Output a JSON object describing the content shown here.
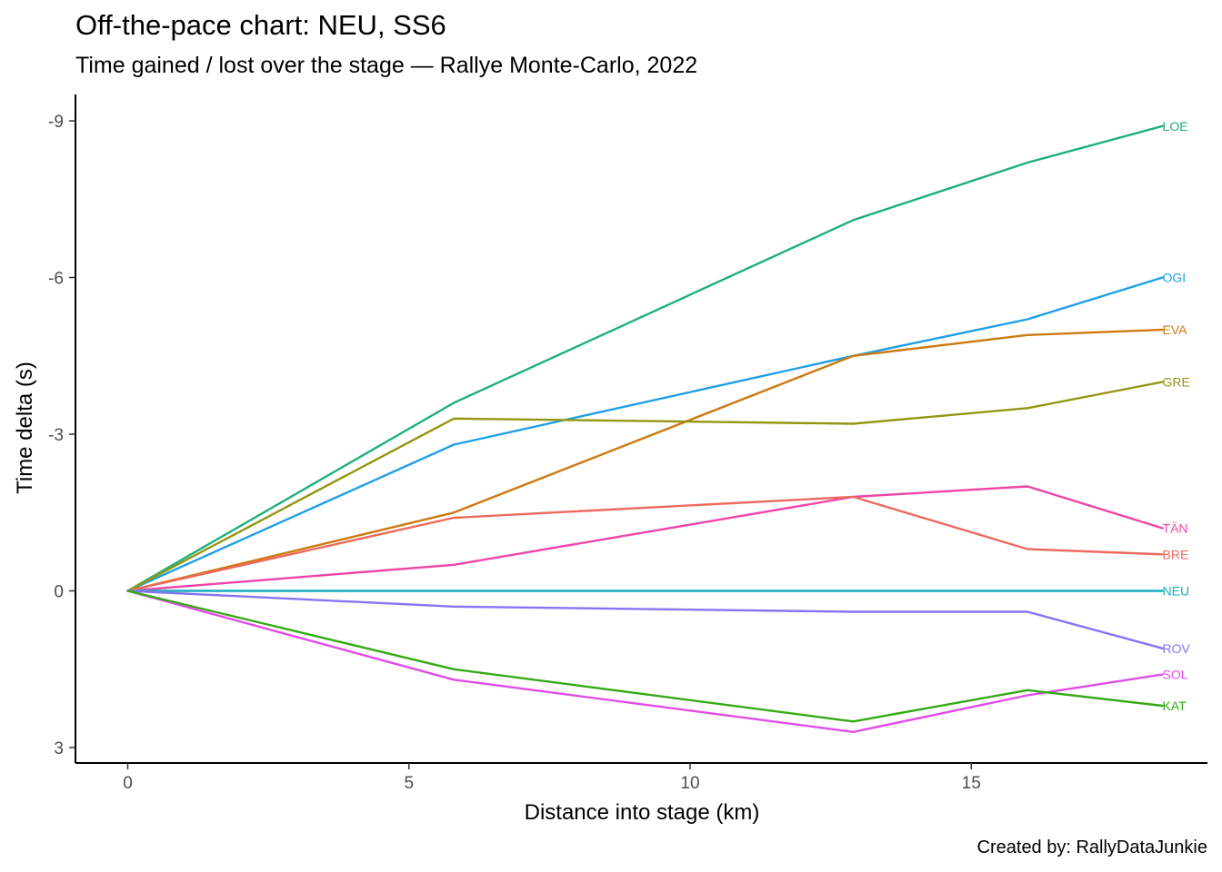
{
  "chart_data": {
    "type": "line",
    "title": "Off-the-pace chart: NEU, SS6",
    "subtitle": "Time gained / lost over the stage — Rallye Monte-Carlo, 2022",
    "caption": "Created by: RallyDataJunkie",
    "xlabel": "Distance into stage (km)",
    "ylabel": "Time delta (s)",
    "xlim": [
      -1.0,
      19.1
    ],
    "ylim": [
      -9.5,
      3.3
    ],
    "y_reversed": true,
    "x_ticks": [
      0,
      5,
      10,
      15
    ],
    "y_ticks": [
      -9,
      -6,
      -3,
      0,
      3
    ],
    "grid": false,
    "legend": "none (direct labels at line ends)",
    "x": [
      0,
      5.8,
      12.9,
      16.0,
      18.4
    ],
    "series": [
      {
        "name": "LOE",
        "color": "#1fb07a",
        "values": [
          0,
          -3.6,
          -7.1,
          -8.2,
          -8.9
        ]
      },
      {
        "name": "OGI",
        "color": "#1ea0e6",
        "values": [
          0,
          -2.8,
          -4.5,
          -5.2,
          -6.0
        ]
      },
      {
        "name": "EVA",
        "color": "#cc7a12",
        "values": [
          0,
          -1.5,
          -4.5,
          -4.9,
          -5.0
        ]
      },
      {
        "name": "GRE",
        "color": "#939612",
        "values": [
          0,
          -3.3,
          -3.2,
          -3.5,
          -4.0
        ]
      },
      {
        "name": "TÄN",
        "color": "#f045a8",
        "values": [
          0,
          -0.5,
          -1.8,
          -2.0,
          -1.2
        ]
      },
      {
        "name": "BRE",
        "color": "#ec6a5e",
        "values": [
          0,
          -1.4,
          -1.8,
          -0.8,
          -0.7
        ]
      },
      {
        "name": "NEU",
        "color": "#17aec0",
        "values": [
          0,
          0,
          0,
          0,
          0
        ]
      },
      {
        "name": "ROV",
        "color": "#8575f4",
        "values": [
          0,
          0.3,
          0.4,
          0.4,
          1.1
        ]
      },
      {
        "name": "SOL",
        "color": "#e04ce8",
        "values": [
          0,
          1.7,
          2.7,
          2.0,
          1.6
        ]
      },
      {
        "name": "KAT",
        "color": "#34aa14",
        "values": [
          0,
          1.5,
          2.5,
          1.9,
          2.2
        ]
      }
    ]
  }
}
